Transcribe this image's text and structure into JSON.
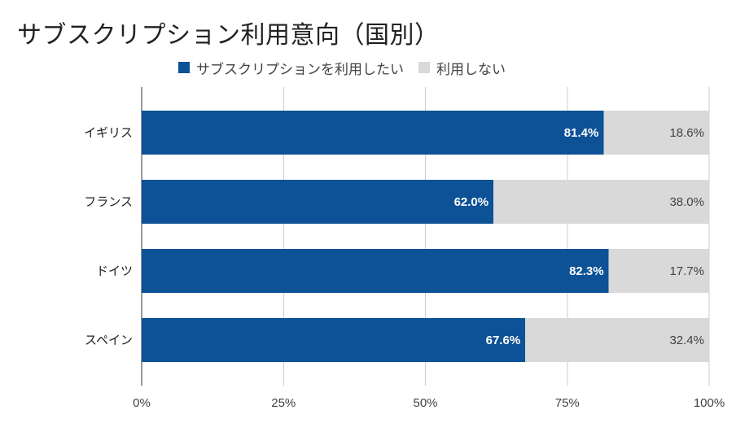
{
  "chart_data": {
    "type": "bar",
    "orientation": "horizontal",
    "stacked": true,
    "title": "サブスクリプション利用意向（国別）",
    "categories": [
      "イギリス",
      "フランス",
      "ドイツ",
      "スペイン"
    ],
    "series": [
      {
        "name": "サブスクリプションを利用したい",
        "color": "#0d5196",
        "values": [
          81.4,
          62.0,
          82.3,
          67.6
        ],
        "labels": [
          "81.4%",
          "62.0%",
          "82.3%",
          "67.6%"
        ]
      },
      {
        "name": "利用しない",
        "color": "#d9d9d9",
        "values": [
          18.6,
          38.0,
          17.7,
          32.4
        ],
        "labels": [
          "18.6%",
          "38.0%",
          "17.7%",
          "32.4%"
        ]
      }
    ],
    "xlim": [
      0,
      100
    ],
    "xticks": [
      0,
      25,
      50,
      75,
      100
    ],
    "xtick_labels": [
      "0%",
      "25%",
      "50%",
      "75%",
      "100%"
    ],
    "grid": true,
    "legend_position": "top"
  }
}
